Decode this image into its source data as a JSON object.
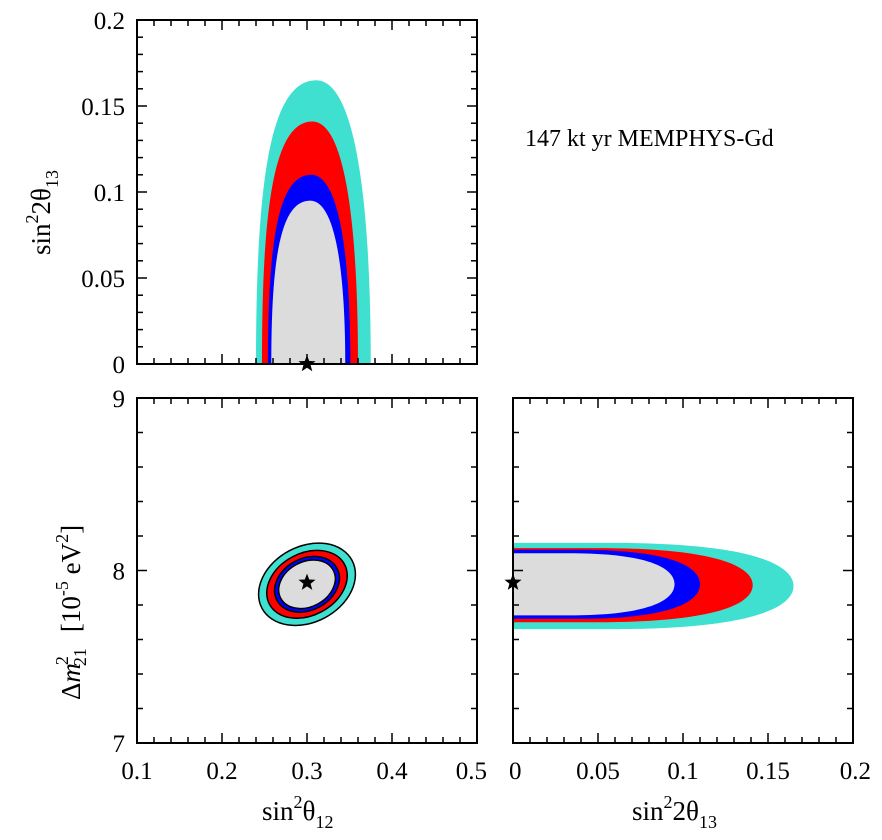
{
  "chart_data": [
    {
      "type": "contour",
      "panel": "top-left",
      "x": "sin²θ12",
      "y": "sin²2θ13",
      "xlim": [
        0.1,
        0.5
      ],
      "ylim": [
        0,
        0.2
      ],
      "yticks": [
        "0",
        "0.05",
        "0.1",
        "0.15",
        "0.2"
      ],
      "ylabel": {
        "base": "sin",
        "sup": "2",
        "mid": "2θ",
        "sub": "13"
      },
      "best_fit": {
        "x": 0.3,
        "y": 0.0
      },
      "regions": [
        {
          "level": "outer",
          "color": "#40e0d0",
          "xmin": 0.24,
          "xmax": 0.375,
          "ymax": 0.165
        },
        {
          "level": "third",
          "color": "#ff0000",
          "xmin": 0.247,
          "xmax": 0.36,
          "ymax": 0.141
        },
        {
          "level": "second",
          "color": "#0000ff",
          "xmin": 0.254,
          "xmax": 0.351,
          "ymax": 0.11
        },
        {
          "level": "inner",
          "color": "#dcdcdc",
          "xmin": 0.258,
          "xmax": 0.345,
          "ymax": 0.095
        }
      ]
    },
    {
      "type": "contour",
      "panel": "bottom-left",
      "x": "sin²θ12",
      "y": "Δm²21",
      "xlim": [
        0.1,
        0.5
      ],
      "ylim": [
        7,
        9
      ],
      "xticks": [
        "0.1",
        "0.2",
        "0.3",
        "0.4",
        "0.5"
      ],
      "yticks": [
        "7",
        "8",
        "9"
      ],
      "xlabel": {
        "base": "sin",
        "sup": "2",
        "mid": "θ",
        "sub": "12"
      },
      "ylabel": {
        "pre": "Δ",
        "m": "m",
        "sup": "2",
        "sub": "21",
        "unit_a": "[10",
        "unit_sup": "-5",
        "unit_b": " eV",
        "unit_sup2": "2",
        "unit_c": "]"
      },
      "best_fit": {
        "x": 0.3,
        "y": 7.93
      },
      "regions": [
        {
          "level": "outer",
          "color": "#40e0d0",
          "cx": 0.3,
          "cy": 7.92,
          "rx": 0.06,
          "ry": 0.22
        },
        {
          "level": "third",
          "color": "#ff0000",
          "cx": 0.3,
          "cy": 7.92,
          "rx": 0.05,
          "ry": 0.18
        },
        {
          "level": "second",
          "color": "#0000ff",
          "cx": 0.3,
          "cy": 7.92,
          "rx": 0.04,
          "ry": 0.15
        },
        {
          "level": "inner",
          "color": "#dcdcdc",
          "cx": 0.3,
          "cy": 7.92,
          "rx": 0.035,
          "ry": 0.13
        }
      ]
    },
    {
      "type": "contour",
      "panel": "bottom-right",
      "x": "sin²2θ13",
      "y": "Δm²21",
      "xlim": [
        0,
        0.2
      ],
      "ylim": [
        7,
        9
      ],
      "xticks": [
        "0",
        "0.05",
        "0.1",
        "0.15",
        "0.2"
      ],
      "xlabel": {
        "base": "sin",
        "sup": "2",
        "mid": "2θ",
        "sub": "13"
      },
      "best_fit": {
        "x": 0.0,
        "y": 7.93
      },
      "regions": [
        {
          "level": "outer",
          "color": "#40e0d0",
          "xmax": 0.165,
          "ylo": 7.66,
          "yhi": 8.16
        },
        {
          "level": "third",
          "color": "#ff0000",
          "xmax": 0.141,
          "ylo": 7.7,
          "yhi": 8.13
        },
        {
          "level": "second",
          "color": "#0000ff",
          "xmax": 0.11,
          "ylo": 7.72,
          "yhi": 8.12
        },
        {
          "level": "inner",
          "color": "#dcdcdc",
          "xmax": 0.095,
          "ylo": 7.74,
          "yhi": 8.1
        }
      ]
    }
  ],
  "annotation": "147 kt yr MEMPHYS-Gd"
}
